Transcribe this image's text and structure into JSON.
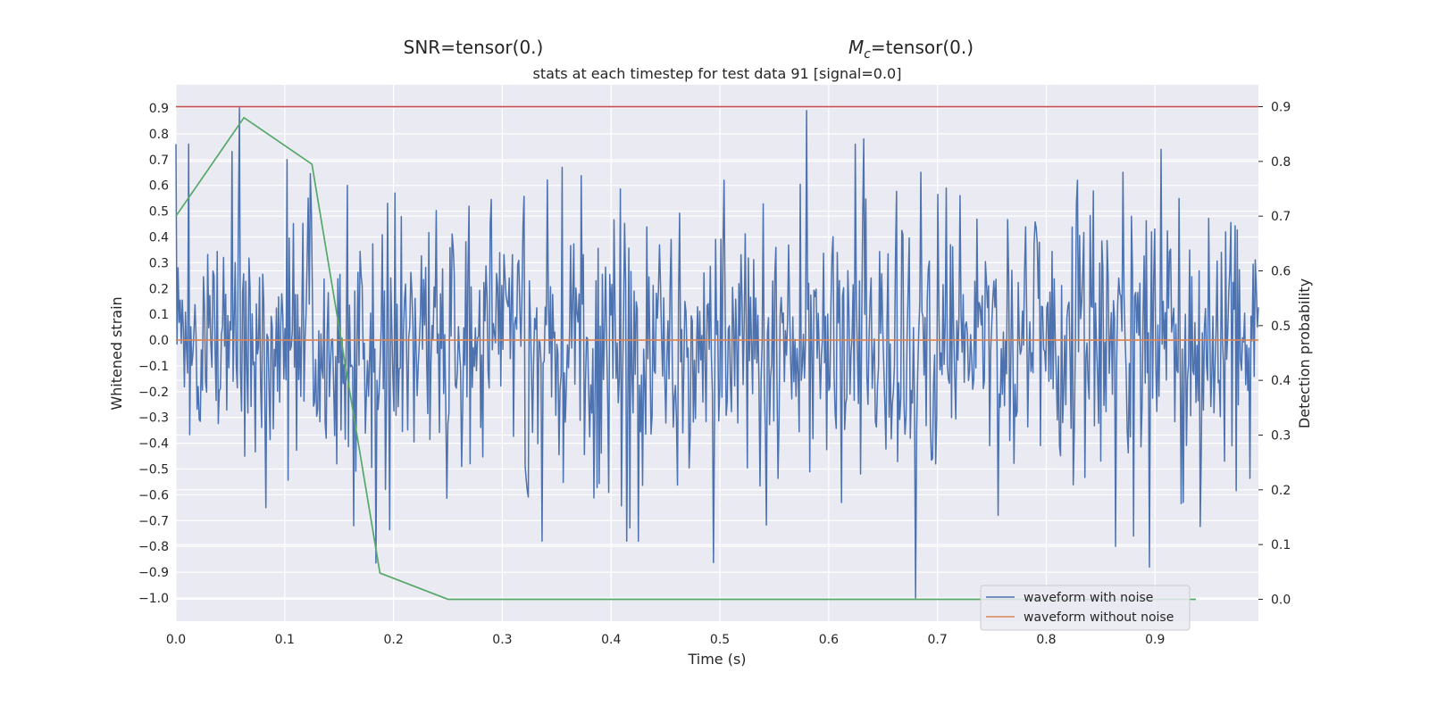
{
  "header": {
    "snr_label": "SNR=tensor(0.)",
    "mc_symbol": "M",
    "mc_subscript": "c",
    "mc_value": "=tensor(0.)"
  },
  "chart_data": {
    "type": "line",
    "title": "stats at each timestep for test data 91 [signal=0.0]",
    "xlabel": "Time (s)",
    "ylabel": "Whitened strain",
    "y2label": "Detection probability",
    "xlim": [
      0.0,
      0.995
    ],
    "ylim": [
      -1.09,
      0.99
    ],
    "y2lim": [
      -0.04,
      0.94
    ],
    "xticks": [
      "0.0",
      "0.1",
      "0.2",
      "0.3",
      "0.4",
      "0.5",
      "0.6",
      "0.7",
      "0.8",
      "0.9"
    ],
    "yticks": [
      "0.9",
      "0.8",
      "0.7",
      "0.6",
      "0.5",
      "0.4",
      "0.3",
      "0.2",
      "0.1",
      "0.0",
      "−0.1",
      "−0.2",
      "−0.3",
      "−0.4",
      "−0.5",
      "−0.6",
      "−0.7",
      "−0.8",
      "−0.9",
      "−1.0"
    ],
    "y2ticks": [
      "0.9",
      "0.8",
      "0.7",
      "0.6",
      "0.5",
      "0.4",
      "0.3",
      "0.2",
      "0.1",
      "0.0"
    ],
    "grid": true,
    "legend": {
      "position": "lower-right",
      "entries": [
        "waveform with noise",
        "waveform without noise"
      ]
    },
    "colors": {
      "noisy": "#4c72b0",
      "clean": "#dd8452",
      "probability": "#55a868",
      "threshold": "#c44e52",
      "background": "#eaeaf2",
      "grid": "#ffffff"
    },
    "series": [
      {
        "name": "waveform with noise",
        "axis": "left",
        "sample_count": 1024,
        "features": [
          {
            "x": 0.058,
            "y": 0.9
          },
          {
            "x": 0.063,
            "y": -0.45
          },
          {
            "x": 0.083,
            "y": -0.65
          },
          {
            "x": 0.102,
            "y": 0.7
          },
          {
            "x": 0.158,
            "y": 0.6
          },
          {
            "x": 0.163,
            "y": -0.72
          },
          {
            "x": 0.337,
            "y": -0.78
          },
          {
            "x": 0.355,
            "y": 0.67
          },
          {
            "x": 0.414,
            "y": -0.78
          },
          {
            "x": 0.425,
            "y": -0.78
          },
          {
            "x": 0.58,
            "y": 0.89
          },
          {
            "x": 0.632,
            "y": 0.78
          },
          {
            "x": 0.68,
            "y": -1.0
          },
          {
            "x": 0.864,
            "y": -0.8
          },
          {
            "x": 0.88,
            "y": -0.76
          }
        ]
      },
      {
        "name": "waveform without noise",
        "axis": "left",
        "x": [
          0.0,
          0.995
        ],
        "y": [
          0.0,
          0.0
        ]
      },
      {
        "axis": "right",
        "x": [
          0.0,
          0.0625,
          0.125,
          0.1875,
          0.25,
          0.3125,
          0.375,
          0.4375,
          0.5,
          0.5625,
          0.625,
          0.6875,
          0.75,
          0.8125,
          0.875,
          0.9375
        ],
        "y": [
          0.7,
          0.88,
          0.795,
          0.048,
          0.0,
          0.0,
          0.0,
          0.0,
          0.0,
          0.0,
          0.0,
          0.0,
          0.0,
          0.0,
          0.0,
          0.0
        ]
      },
      {
        "axis": "right",
        "x": [
          0.0,
          0.995
        ],
        "y": [
          0.9,
          0.9
        ]
      }
    ]
  }
}
